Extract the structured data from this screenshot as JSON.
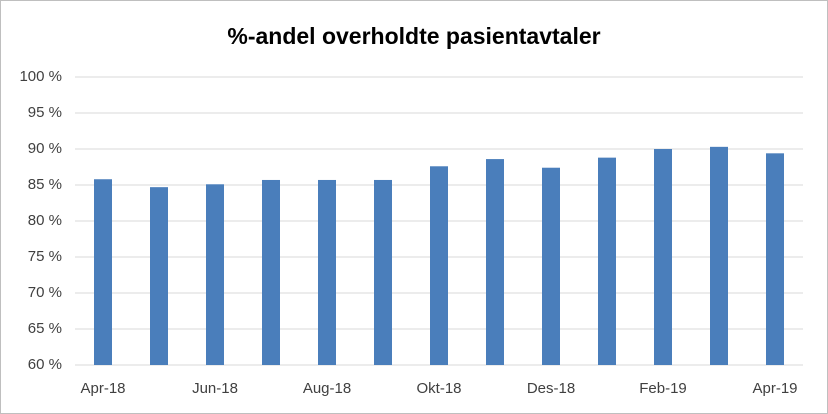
{
  "chart_data": {
    "type": "bar",
    "title": "%-andel overholdte pasientavtaler",
    "categories": [
      "Apr-18",
      null,
      "Jun-18",
      null,
      "Aug-18",
      null,
      "Okt-18",
      null,
      "Des-18",
      null,
      "Feb-19",
      null,
      "Apr-19"
    ],
    "values": [
      85.8,
      84.7,
      85.1,
      85.7,
      85.7,
      85.7,
      87.6,
      88.6,
      87.4,
      88.8,
      90.0,
      90.3,
      89.4
    ],
    "color": "#4a7ebb",
    "ylim": [
      60,
      100
    ],
    "yticks": [
      {
        "value": 60,
        "label": "60 %"
      },
      {
        "value": 65,
        "label": "65 %"
      },
      {
        "value": 70,
        "label": "70 %"
      },
      {
        "value": 75,
        "label": "75 %"
      },
      {
        "value": 80,
        "label": "80 %"
      },
      {
        "value": 85,
        "label": "85 %"
      },
      {
        "value": 90,
        "label": "90 %"
      },
      {
        "value": 95,
        "label": "95 %"
      },
      {
        "value": 100,
        "label": "100 %"
      }
    ],
    "grid": true
  }
}
